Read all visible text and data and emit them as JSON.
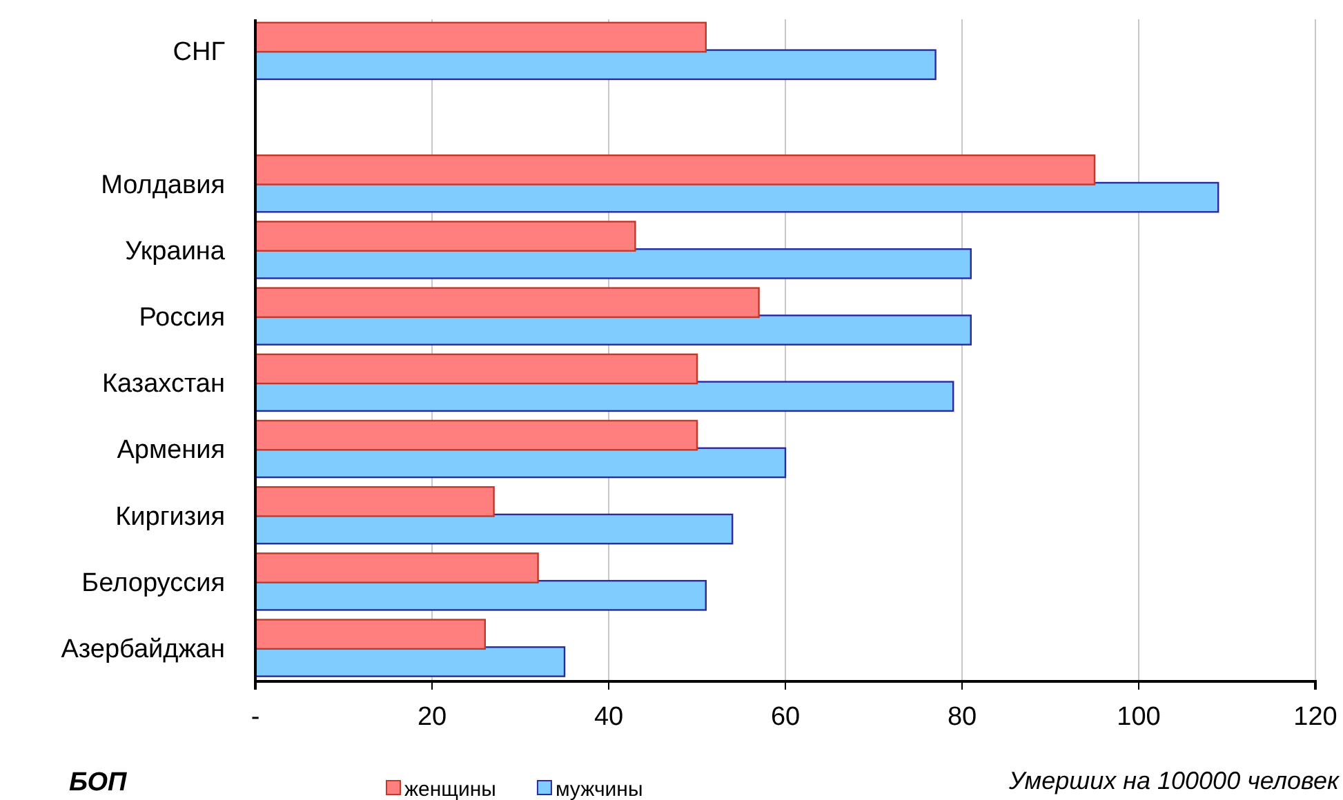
{
  "chart_data": {
    "type": "bar",
    "orientation": "horizontal",
    "categories": [
      "СНГ",
      null,
      "Молдавия",
      "Украина",
      "Россия",
      "Казахстан",
      "Армения",
      "Киргизия",
      "Белоруссия",
      "Азербайджан"
    ],
    "series": [
      {
        "name": "женщины",
        "color": "#ff7f7f",
        "values": [
          51,
          null,
          95,
          43,
          57,
          50,
          50,
          27,
          32,
          26
        ]
      },
      {
        "name": "мужчины",
        "color": "#80ccff",
        "values": [
          77,
          null,
          109,
          81,
          81,
          79,
          60,
          54,
          51,
          35
        ]
      }
    ],
    "xlim": [
      0,
      120
    ],
    "xticks": [
      {
        "value": 0,
        "label": "-"
      },
      20,
      40,
      60,
      80,
      100,
      120
    ],
    "xlabel": "Умерших на 100000 человек",
    "annotations": [
      "БОП"
    ],
    "grid": "x",
    "legend": "bottom"
  }
}
